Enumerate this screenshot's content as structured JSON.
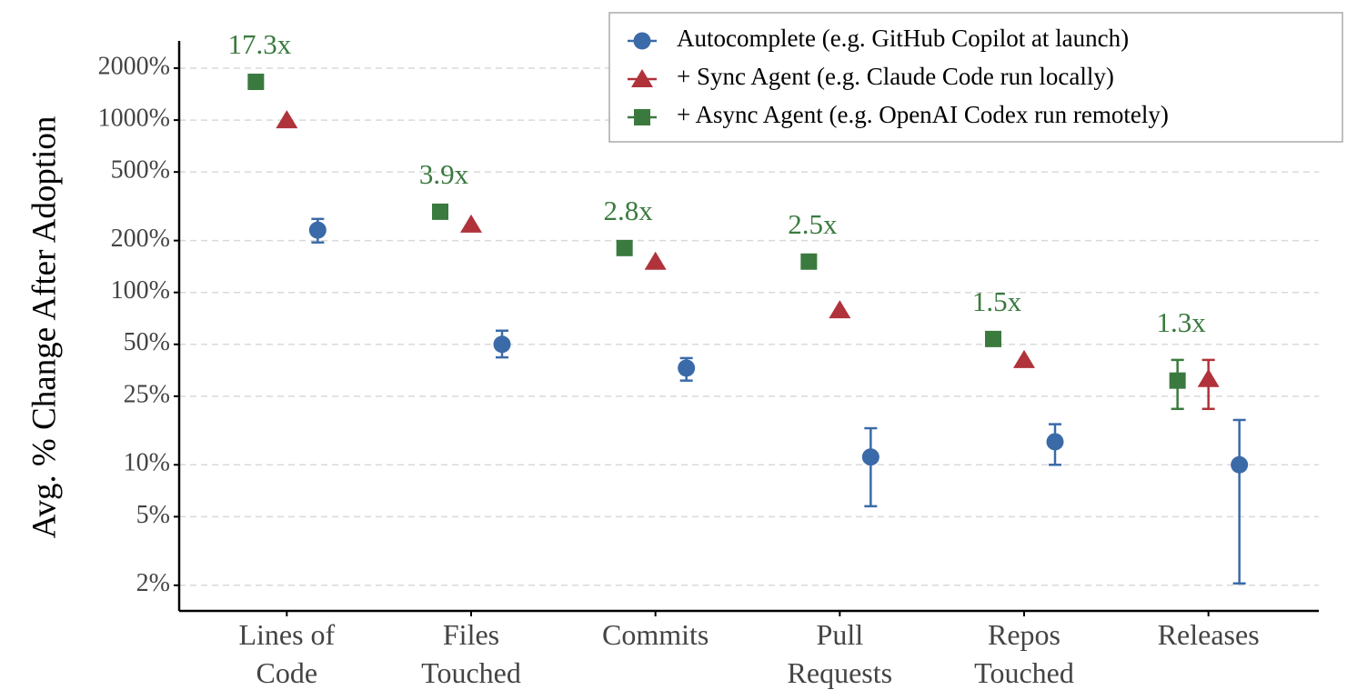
{
  "chart_data": {
    "type": "dot-errorbar",
    "y_label": "Avg. % Change After Adoption",
    "y_scale": "log",
    "grid": true,
    "legend_position": "top-right",
    "categories": [
      "Lines of Code",
      "Files Touched",
      "Commits",
      "Pull Requests",
      "Repos Touched",
      "Releases"
    ],
    "ratio_labels": [
      "17.3x",
      "3.9x",
      "2.8x",
      "2.5x",
      "1.5x",
      "1.3x"
    ],
    "ratio_color": "#3a7a3e",
    "ylim": [
      1.42,
      2880
    ],
    "yticks": [
      {
        "value": 2,
        "label": "2%"
      },
      {
        "value": 5,
        "label": "5%"
      },
      {
        "value": 10,
        "label": "10%"
      },
      {
        "value": 25,
        "label": "25%"
      },
      {
        "value": 50,
        "label": "50%"
      },
      {
        "value": 100,
        "label": "100%"
      },
      {
        "value": 200,
        "label": "200%"
      },
      {
        "value": 500,
        "label": "500%"
      },
      {
        "value": 1000,
        "label": "1000%"
      },
      {
        "value": 2000,
        "label": "2000%"
      }
    ],
    "series": [
      {
        "name": "Autocomplete (e.g. GitHub Copilot at launch)",
        "color": "#3b6aa8",
        "marker": "circle",
        "values": [
          230,
          50,
          36.4,
          11.1,
          13.6,
          10
        ],
        "lower": [
          195,
          42,
          30.8,
          5.75,
          10,
          2.05
        ],
        "upper": [
          267,
          60,
          41.6,
          16.3,
          17.2,
          18.2
        ]
      },
      {
        "name": "+ Sync Agent (e.g. Claude Code run locally)",
        "color": "#b0323a",
        "marker": "triangle",
        "values": [
          1000,
          248,
          151,
          79,
          40.6,
          31.5
        ],
        "lower": [
          null,
          null,
          null,
          null,
          null,
          21.1
        ],
        "upper": [
          null,
          null,
          null,
          null,
          null,
          40.6
        ]
      },
      {
        "name": "+ Async Agent (e.g. OpenAI Codex run remotely)",
        "color": "#3a7a3e",
        "marker": "square",
        "values": [
          1667,
          294,
          181,
          151,
          53.7,
          30.8
        ],
        "lower": [
          null,
          null,
          null,
          null,
          null,
          21.1
        ],
        "upper": [
          null,
          null,
          null,
          null,
          null,
          40.6
        ]
      }
    ]
  }
}
